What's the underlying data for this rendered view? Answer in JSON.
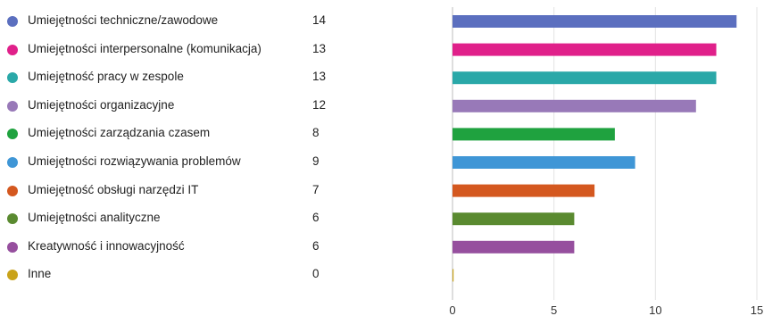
{
  "chart_data": {
    "type": "bar",
    "orientation": "horizontal",
    "categories": [
      "Umiejętności techniczne/zawodowe",
      "Umiejętności interpersonalne (komunikacja)",
      "Umiejętność pracy w zespole",
      "Umiejętności organizacyjne",
      "Umiejętności zarządzania czasem",
      "Umiejętności rozwiązywania problemów",
      "Umiejętność obsługi narzędzi IT",
      "Umiejętności analityczne",
      "Kreatywność i innowacyjność",
      "Inne"
    ],
    "values": [
      14,
      13,
      13,
      12,
      8,
      9,
      7,
      6,
      6,
      0
    ],
    "colors": [
      "#5b6fbf",
      "#e0208a",
      "#2aa8a8",
      "#9879b8",
      "#1fa23f",
      "#3f96d6",
      "#d4581f",
      "#5a8a30",
      "#964f9e",
      "#c9a31a"
    ],
    "xlim": [
      0,
      15
    ],
    "xticks": [
      0,
      5,
      10,
      15
    ],
    "grid": true,
    "legend_placement": "left",
    "title": "",
    "xlabel": "",
    "ylabel": ""
  }
}
